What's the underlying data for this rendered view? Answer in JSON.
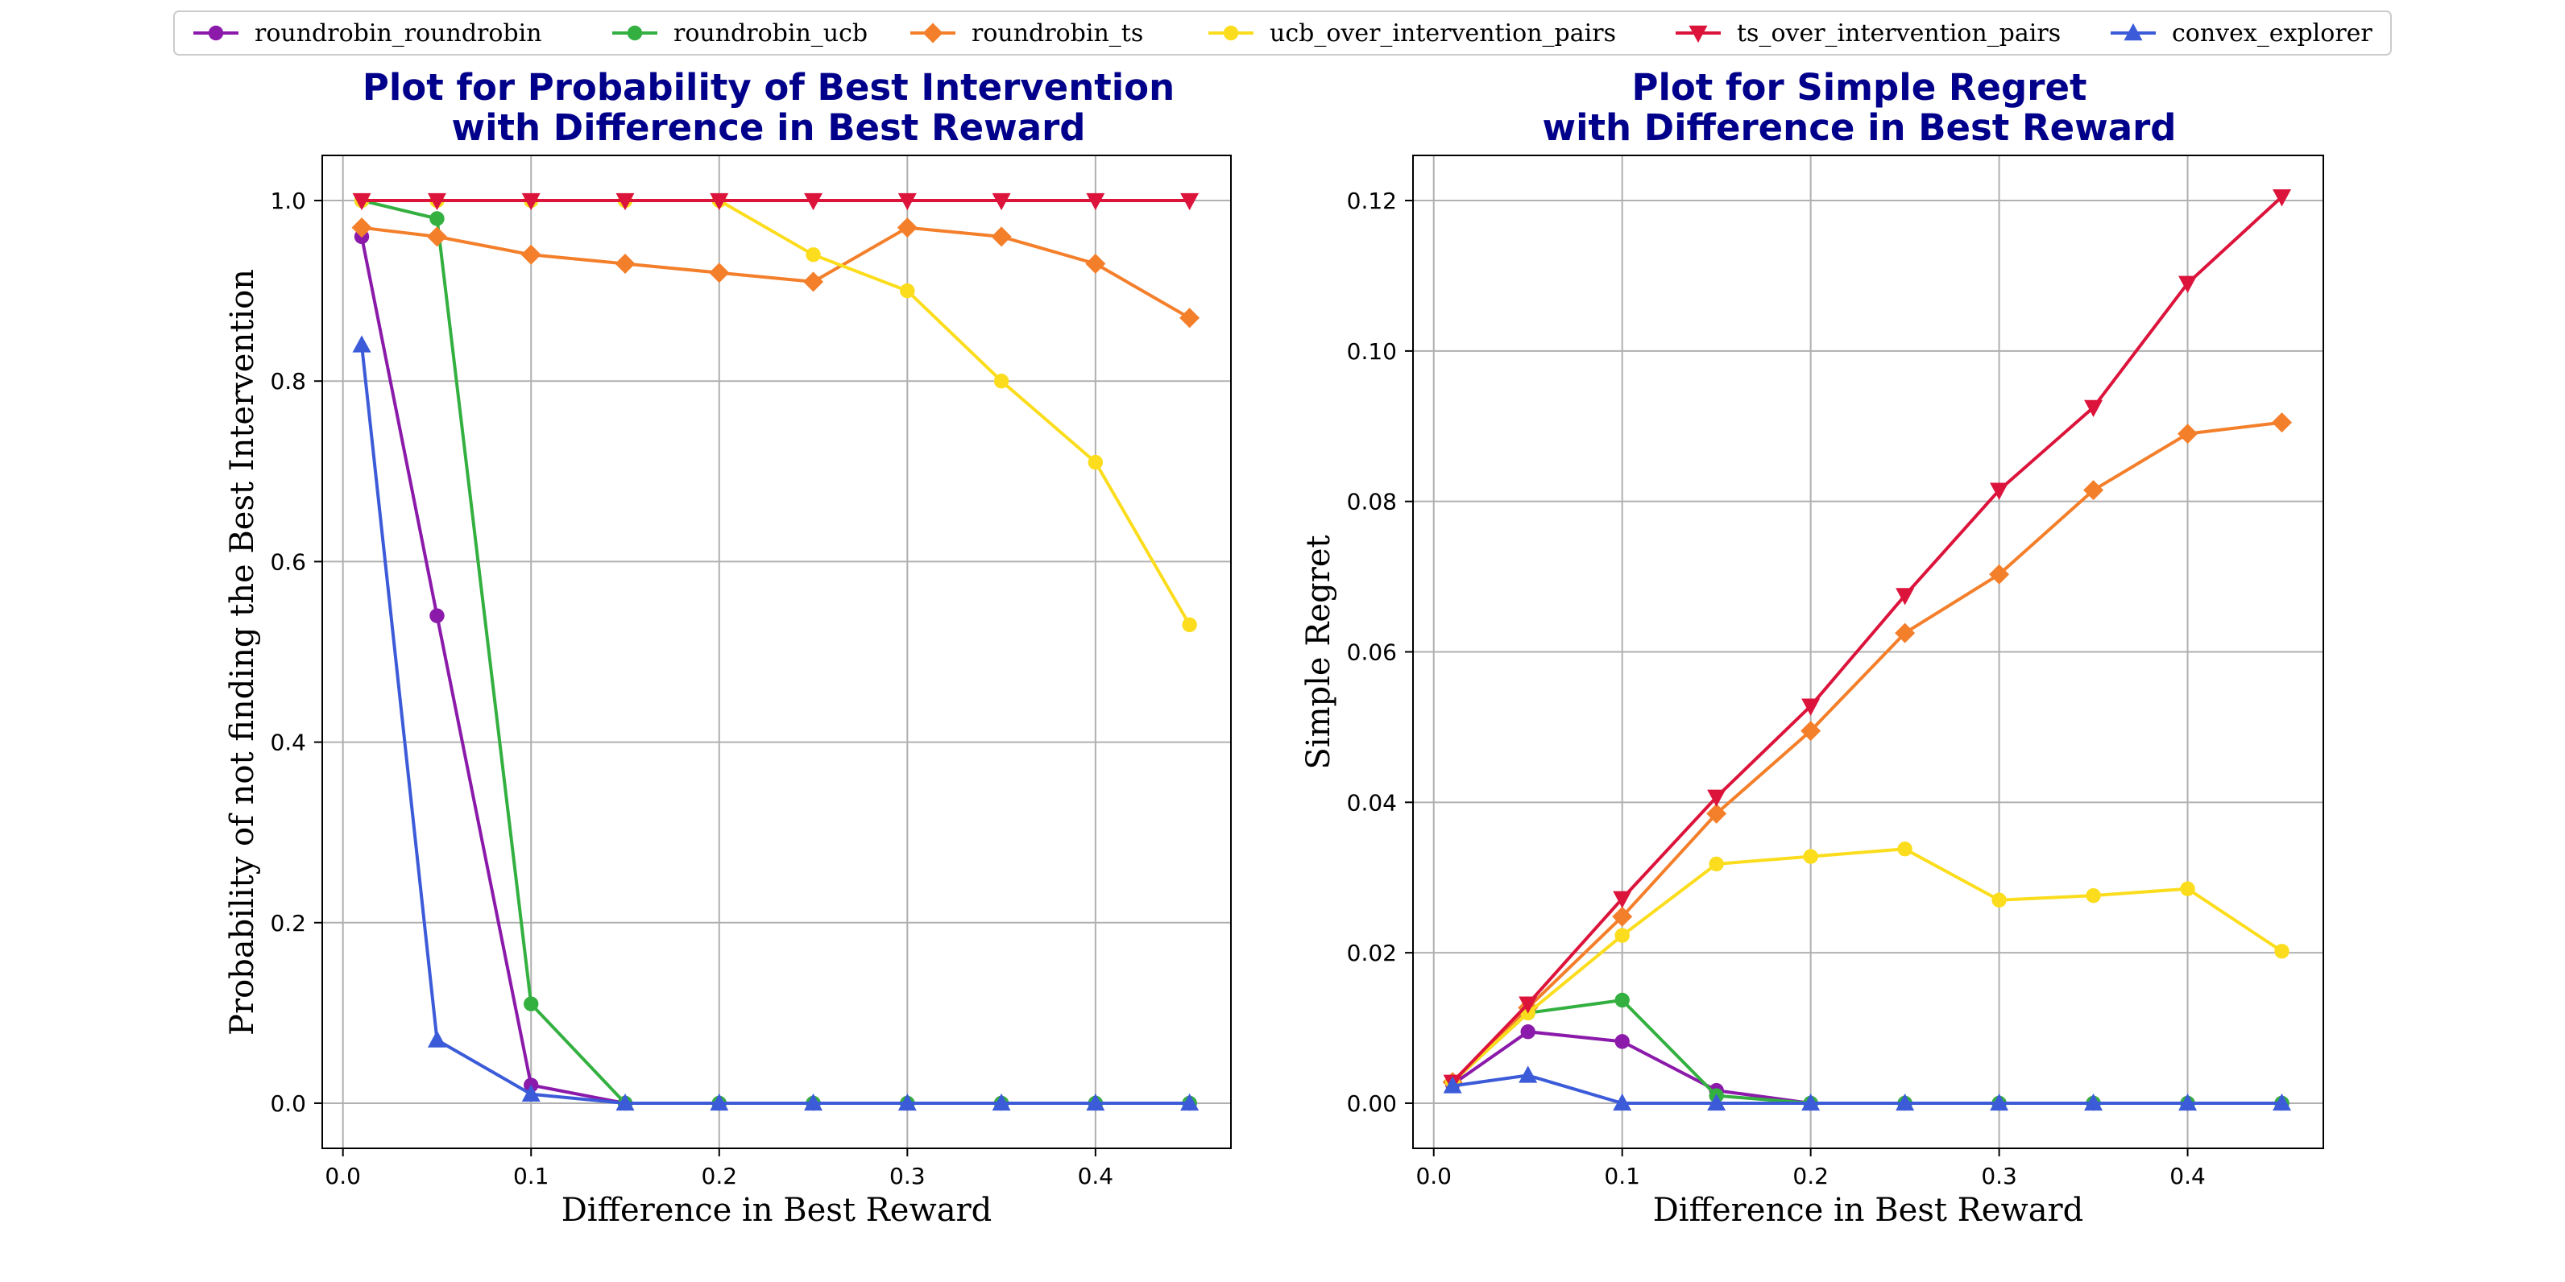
{
  "series_styles": [
    {
      "name": "roundrobin_roundrobin",
      "color": "#8b1aaa",
      "marker": "circle"
    },
    {
      "name": "roundrobin_ucb",
      "color": "#33b040",
      "marker": "circle"
    },
    {
      "name": "roundrobin_ts",
      "color": "#f47f2b",
      "marker": "diamond"
    },
    {
      "name": "ucb_over_intervention_pairs",
      "color": "#fbdd1d",
      "marker": "circle"
    },
    {
      "name": "ts_over_intervention_pairs",
      "color": "#dc143c",
      "marker": "triangle-down"
    },
    {
      "name": "convex_explorer",
      "color": "#3b5bd9",
      "marker": "triangle-up"
    }
  ],
  "chart_data": [
    {
      "type": "line",
      "title": "Plot for Probability of Best Intervention\nwith Difference in Best Reward",
      "xlabel": "Difference in Best Reward",
      "ylabel": "Probability of not finding the Best Intervention",
      "x": [
        0.01,
        0.05,
        0.1,
        0.15,
        0.2,
        0.25,
        0.3,
        0.35,
        0.4,
        0.45
      ],
      "xlim": [
        -0.011,
        0.472
      ],
      "ylim": [
        -0.05,
        1.05
      ],
      "xticks": [
        0.0,
        0.1,
        0.2,
        0.3,
        0.4
      ],
      "xtick_labels": [
        "0.0",
        "0.1",
        "0.2",
        "0.3",
        "0.4"
      ],
      "yticks": [
        0.0,
        0.2,
        0.4,
        0.6,
        0.8,
        1.0
      ],
      "ytick_labels": [
        "0.0",
        "0.2",
        "0.4",
        "0.6",
        "0.8",
        "1.0"
      ],
      "grid": true,
      "series": [
        {
          "name": "roundrobin_roundrobin",
          "values": [
            0.96,
            0.54,
            0.02,
            0.0,
            0.0,
            0.0,
            0.0,
            0.0,
            0.0,
            0.0
          ]
        },
        {
          "name": "roundrobin_ucb",
          "values": [
            1.0,
            0.98,
            0.11,
            0.0,
            0.0,
            0.0,
            0.0,
            0.0,
            0.0,
            0.0
          ]
        },
        {
          "name": "roundrobin_ts",
          "values": [
            0.97,
            0.96,
            0.94,
            0.93,
            0.92,
            0.91,
            0.97,
            0.96,
            0.93,
            0.87
          ]
        },
        {
          "name": "ucb_over_intervention_pairs",
          "values": [
            1.0,
            1.0,
            1.0,
            1.0,
            1.0,
            0.94,
            0.9,
            0.8,
            0.71,
            0.53
          ]
        },
        {
          "name": "ts_over_intervention_pairs",
          "values": [
            1.0,
            1.0,
            1.0,
            1.0,
            1.0,
            1.0,
            1.0,
            1.0,
            1.0,
            1.0
          ]
        },
        {
          "name": "convex_explorer",
          "values": [
            0.84,
            0.07,
            0.01,
            0.0,
            0.0,
            0.0,
            0.0,
            0.0,
            0.0,
            0.0
          ]
        }
      ]
    },
    {
      "type": "line",
      "title": "Plot for Simple Regret\nwith Difference in Best Reward",
      "xlabel": "Difference in Best Reward",
      "ylabel": "Simple Regret",
      "x": [
        0.01,
        0.05,
        0.1,
        0.15,
        0.2,
        0.25,
        0.3,
        0.35,
        0.4,
        0.45
      ],
      "xlim": [
        -0.011,
        0.472
      ],
      "ylim": [
        -0.006,
        0.126
      ],
      "xticks": [
        0.0,
        0.1,
        0.2,
        0.3,
        0.4
      ],
      "xtick_labels": [
        "0.0",
        "0.1",
        "0.2",
        "0.3",
        "0.4"
      ],
      "yticks": [
        0.0,
        0.02,
        0.04,
        0.06,
        0.08,
        0.1,
        0.12
      ],
      "ytick_labels": [
        "0.00",
        "0.02",
        "0.04",
        "0.06",
        "0.08",
        "0.10",
        "0.12"
      ],
      "grid": true,
      "series": [
        {
          "name": "roundrobin_roundrobin",
          "values": [
            0.0025,
            0.0095,
            0.0082,
            0.0017,
            0.0,
            0.0,
            0.0,
            0.0,
            0.0,
            0.0
          ]
        },
        {
          "name": "roundrobin_ucb",
          "values": [
            0.0028,
            0.012,
            0.0137,
            0.001,
            0.0,
            0.0,
            0.0,
            0.0,
            0.0,
            0.0
          ]
        },
        {
          "name": "roundrobin_ts",
          "values": [
            0.0028,
            0.0127,
            0.0248,
            0.0385,
            0.0495,
            0.0625,
            0.0703,
            0.0815,
            0.089,
            0.0905
          ]
        },
        {
          "name": "ucb_over_intervention_pairs",
          "values": [
            0.0028,
            0.012,
            0.0223,
            0.0318,
            0.0328,
            0.0338,
            0.027,
            0.0276,
            0.0285,
            0.0202
          ]
        },
        {
          "name": "ts_over_intervention_pairs",
          "values": [
            0.0028,
            0.0132,
            0.0272,
            0.0407,
            0.0528,
            0.0675,
            0.0815,
            0.0925,
            0.109,
            0.1205
          ]
        },
        {
          "name": "convex_explorer",
          "values": [
            0.0023,
            0.0037,
            0.0,
            0.0,
            0.0,
            0.0,
            0.0,
            0.0,
            0.0,
            0.0
          ]
        }
      ]
    }
  ]
}
